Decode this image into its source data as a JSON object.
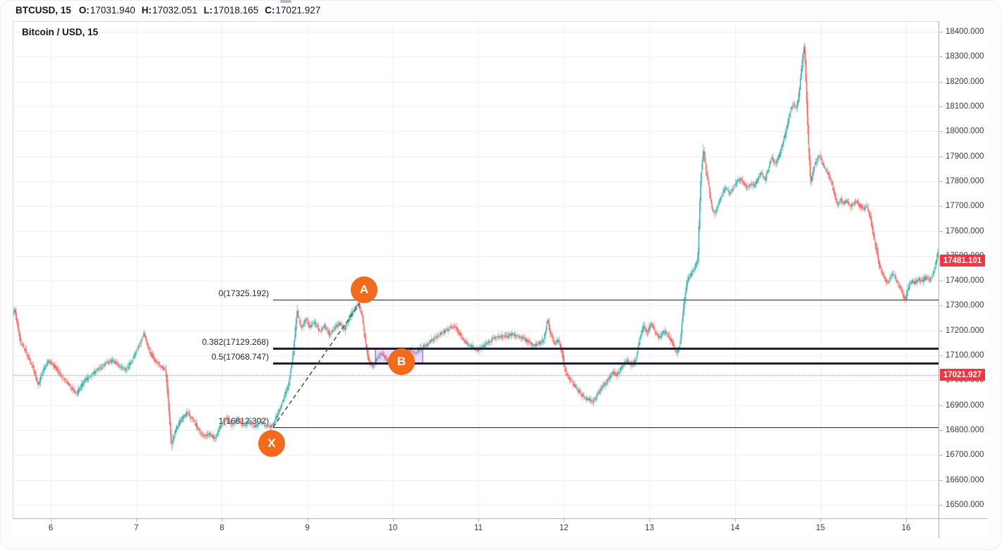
{
  "header": {
    "symbol": "BTCUSD, 15",
    "fields": [
      {
        "label": "O:",
        "value": "17031.940"
      },
      {
        "label": "H:",
        "value": "17032.051"
      },
      {
        "label": "L:",
        "value": "17018.165"
      },
      {
        "label": "C:",
        "value": "17021.927"
      }
    ]
  },
  "chart_title": "Bitcoin / USD, 15",
  "colors": {
    "up_candle": "#26a69a",
    "down_candle": "#ef5350",
    "badge_red": "#f23645",
    "fib_line": "#1c2030",
    "marker_orange": "#f26b1c",
    "zone_purple": "rgba(187,134,252,0.28)",
    "grid": "#f0f2f8",
    "text_dark": "#131722"
  },
  "price_axis": {
    "ticks": [
      "18400.000",
      "18300.000",
      "18200.000",
      "18100.000",
      "18000.000",
      "17900.000",
      "17800.000",
      "17700.000",
      "17600.000",
      "17500.000",
      "17400.000",
      "17300.000",
      "17200.000",
      "17100.000",
      "17000.000",
      "16900.000",
      "16800.000",
      "16700.000",
      "16600.000",
      "16500.000"
    ],
    "badges": [
      {
        "text": "17481.101",
        "price": 17481.101
      },
      {
        "text": "17021.927",
        "price": 17021.927
      }
    ]
  },
  "time_axis": {
    "ticks": [
      {
        "label": "6",
        "day": 6
      },
      {
        "label": "7",
        "day": 7
      },
      {
        "label": "8",
        "day": 8
      },
      {
        "label": "9",
        "day": 9
      },
      {
        "label": "10",
        "day": 10
      },
      {
        "label": "11",
        "day": 11
      },
      {
        "label": "12",
        "day": 12
      },
      {
        "label": "13",
        "day": 13
      },
      {
        "label": "14",
        "day": 14
      },
      {
        "label": "15",
        "day": 15
      },
      {
        "label": "16",
        "day": 16
      }
    ]
  },
  "fib_levels": [
    {
      "label": "0(17325.192)",
      "price": 17325.192,
      "thick": false
    },
    {
      "label": "0.382(17129.268)",
      "price": 17129.268,
      "thick": true
    },
    {
      "label": "0.5(17068.747)",
      "price": 17068.747,
      "thick": true
    },
    {
      "label": "1(16812.302)",
      "price": 16812.302,
      "thick": false
    }
  ],
  "markers": [
    {
      "letter": "A",
      "day": 9.663,
      "price": 17364
    },
    {
      "letter": "B",
      "day": 10.1,
      "price": 17075
    },
    {
      "letter": "X",
      "day": 8.582,
      "price": 16747
    }
  ],
  "trendline": {
    "from_day": 8.6,
    "from_price": 16812.3,
    "to_day": 9.615,
    "to_price": 17310
  },
  "highlight_zone": {
    "from_day": 9.787,
    "to_day": 10.356,
    "top_price": 17129.268,
    "bottom_price": 17068.747
  },
  "current_price_line": {
    "price": 17021.927
  },
  "chart_data": {
    "type": "candlestick",
    "symbol": "BTCUSD",
    "interval_minutes": 15,
    "ylim": [
      16500,
      18400
    ],
    "x_day_range": [
      5.55,
      16.44
    ],
    "last_close": 17481.101,
    "current_price": 17021.927,
    "price_path": [
      [
        5.553,
        17260
      ],
      [
        5.587,
        17285
      ],
      [
        5.653,
        17160
      ],
      [
        5.736,
        17100
      ],
      [
        5.802,
        17050
      ],
      [
        5.86,
        16980
      ],
      [
        5.917,
        17040
      ],
      [
        5.983,
        17080
      ],
      [
        6.066,
        17050
      ],
      [
        6.149,
        17010
      ],
      [
        6.231,
        16980
      ],
      [
        6.314,
        16945
      ],
      [
        6.396,
        16995
      ],
      [
        6.479,
        17020
      ],
      [
        6.561,
        17045
      ],
      [
        6.644,
        17065
      ],
      [
        6.726,
        17080
      ],
      [
        6.809,
        17060
      ],
      [
        6.891,
        17040
      ],
      [
        6.974,
        17090
      ],
      [
        7.056,
        17150
      ],
      [
        7.097,
        17190
      ],
      [
        7.155,
        17120
      ],
      [
        7.221,
        17080
      ],
      [
        7.287,
        17060
      ],
      [
        7.353,
        17040
      ],
      [
        7.386,
        16900
      ],
      [
        7.419,
        16740
      ],
      [
        7.469,
        16800
      ],
      [
        7.535,
        16845
      ],
      [
        7.601,
        16870
      ],
      [
        7.667,
        16845
      ],
      [
        7.733,
        16805
      ],
      [
        7.799,
        16775
      ],
      [
        7.865,
        16785
      ],
      [
        7.931,
        16765
      ],
      [
        7.997,
        16820
      ],
      [
        8.063,
        16850
      ],
      [
        8.129,
        16820
      ],
      [
        8.195,
        16845
      ],
      [
        8.261,
        16815
      ],
      [
        8.327,
        16835
      ],
      [
        8.393,
        16815
      ],
      [
        8.459,
        16835
      ],
      [
        8.525,
        16818
      ],
      [
        8.591,
        16815
      ],
      [
        8.657,
        16860
      ],
      [
        8.723,
        16920
      ],
      [
        8.789,
        16980
      ],
      [
        8.847,
        17120
      ],
      [
        8.888,
        17280
      ],
      [
        8.937,
        17210
      ],
      [
        8.987,
        17250
      ],
      [
        9.036,
        17215
      ],
      [
        9.094,
        17235
      ],
      [
        9.152,
        17195
      ],
      [
        9.21,
        17220
      ],
      [
        9.267,
        17185
      ],
      [
        9.325,
        17210
      ],
      [
        9.383,
        17230
      ],
      [
        9.441,
        17205
      ],
      [
        9.498,
        17250
      ],
      [
        9.556,
        17285
      ],
      [
        9.606,
        17310
      ],
      [
        9.647,
        17260
      ],
      [
        9.688,
        17150
      ],
      [
        9.729,
        17075
      ],
      [
        9.779,
        17060
      ],
      [
        9.828,
        17090
      ],
      [
        9.878,
        17110
      ],
      [
        9.927,
        17085
      ],
      [
        9.977,
        17065
      ],
      [
        10.035,
        17090
      ],
      [
        10.092,
        17070
      ],
      [
        10.15,
        17100
      ],
      [
        10.208,
        17125
      ],
      [
        10.274,
        17110
      ],
      [
        10.34,
        17130
      ],
      [
        10.406,
        17145
      ],
      [
        10.472,
        17165
      ],
      [
        10.538,
        17180
      ],
      [
        10.604,
        17195
      ],
      [
        10.67,
        17210
      ],
      [
        10.736,
        17215
      ],
      [
        10.802,
        17180
      ],
      [
        10.868,
        17150
      ],
      [
        10.934,
        17135
      ],
      [
        11,
        17120
      ],
      [
        11.066,
        17135
      ],
      [
        11.132,
        17155
      ],
      [
        11.198,
        17170
      ],
      [
        11.264,
        17180
      ],
      [
        11.33,
        17175
      ],
      [
        11.396,
        17185
      ],
      [
        11.462,
        17180
      ],
      [
        11.528,
        17170
      ],
      [
        11.594,
        17155
      ],
      [
        11.66,
        17140
      ],
      [
        11.726,
        17150
      ],
      [
        11.776,
        17165
      ],
      [
        11.817,
        17240
      ],
      [
        11.858,
        17180
      ],
      [
        11.899,
        17150
      ],
      [
        11.941,
        17160
      ],
      [
        11.982,
        17120
      ],
      [
        12.023,
        17040
      ],
      [
        12.073,
        17005
      ],
      [
        12.122,
        16985
      ],
      [
        12.172,
        16960
      ],
      [
        12.229,
        16935
      ],
      [
        12.287,
        16925
      ],
      [
        12.345,
        16915
      ],
      [
        12.403,
        16945
      ],
      [
        12.46,
        16975
      ],
      [
        12.518,
        17000
      ],
      [
        12.576,
        17035
      ],
      [
        12.634,
        17020
      ],
      [
        12.691,
        17060
      ],
      [
        12.749,
        17080
      ],
      [
        12.807,
        17060
      ],
      [
        12.856,
        17090
      ],
      [
        12.898,
        17175
      ],
      [
        12.939,
        17220
      ],
      [
        12.98,
        17190
      ],
      [
        13.03,
        17230
      ],
      [
        13.079,
        17190
      ],
      [
        13.129,
        17170
      ],
      [
        13.178,
        17200
      ],
      [
        13.228,
        17180
      ],
      [
        13.277,
        17150
      ],
      [
        13.327,
        17110
      ],
      [
        13.368,
        17150
      ],
      [
        13.409,
        17300
      ],
      [
        13.45,
        17400
      ],
      [
        13.492,
        17425
      ],
      [
        13.533,
        17450
      ],
      [
        13.574,
        17480
      ],
      [
        13.607,
        17800
      ],
      [
        13.64,
        17920
      ],
      [
        13.673,
        17840
      ],
      [
        13.706,
        17770
      ],
      [
        13.739,
        17690
      ],
      [
        13.78,
        17670
      ],
      [
        13.822,
        17720
      ],
      [
        13.863,
        17750
      ],
      [
        13.904,
        17775
      ],
      [
        13.946,
        17750
      ],
      [
        13.987,
        17770
      ],
      [
        14.028,
        17800
      ],
      [
        14.069,
        17810
      ],
      [
        14.111,
        17790
      ],
      [
        14.152,
        17775
      ],
      [
        14.193,
        17790
      ],
      [
        14.234,
        17780
      ],
      [
        14.276,
        17810
      ],
      [
        14.317,
        17830
      ],
      [
        14.358,
        17805
      ],
      [
        14.399,
        17850
      ],
      [
        14.441,
        17895
      ],
      [
        14.482,
        17870
      ],
      [
        14.523,
        17900
      ],
      [
        14.564,
        17950
      ],
      [
        14.606,
        18000
      ],
      [
        14.647,
        18070
      ],
      [
        14.688,
        18110
      ],
      [
        14.729,
        18090
      ],
      [
        14.762,
        18160
      ],
      [
        14.795,
        18280
      ],
      [
        14.82,
        18350
      ],
      [
        14.845,
        18140
      ],
      [
        14.869,
        17940
      ],
      [
        14.894,
        17790
      ],
      [
        14.927,
        17850
      ],
      [
        14.96,
        17880
      ],
      [
        14.993,
        17905
      ],
      [
        15.026,
        17880
      ],
      [
        15.059,
        17855
      ],
      [
        15.1,
        17825
      ],
      [
        15.142,
        17790
      ],
      [
        15.175,
        17740
      ],
      [
        15.208,
        17700
      ],
      [
        15.241,
        17730
      ],
      [
        15.274,
        17710
      ],
      [
        15.307,
        17720
      ],
      [
        15.348,
        17700
      ],
      [
        15.389,
        17710
      ],
      [
        15.43,
        17720
      ],
      [
        15.472,
        17700
      ],
      [
        15.513,
        17690
      ],
      [
        15.554,
        17700
      ],
      [
        15.587,
        17660
      ],
      [
        15.62,
        17600
      ],
      [
        15.653,
        17540
      ],
      [
        15.686,
        17480
      ],
      [
        15.719,
        17440
      ],
      [
        15.76,
        17410
      ],
      [
        15.802,
        17390
      ],
      [
        15.843,
        17430
      ],
      [
        15.884,
        17410
      ],
      [
        15.925,
        17380
      ],
      [
        15.967,
        17350
      ],
      [
        16,
        17320
      ],
      [
        16.033,
        17370
      ],
      [
        16.074,
        17400
      ],
      [
        16.116,
        17390
      ],
      [
        16.157,
        17410
      ],
      [
        16.198,
        17395
      ],
      [
        16.24,
        17415
      ],
      [
        16.281,
        17400
      ],
      [
        16.322,
        17420
      ],
      [
        16.355,
        17470
      ],
      [
        16.38,
        17510
      ],
      [
        16.405,
        17530
      ],
      [
        16.438,
        17481
      ]
    ]
  }
}
